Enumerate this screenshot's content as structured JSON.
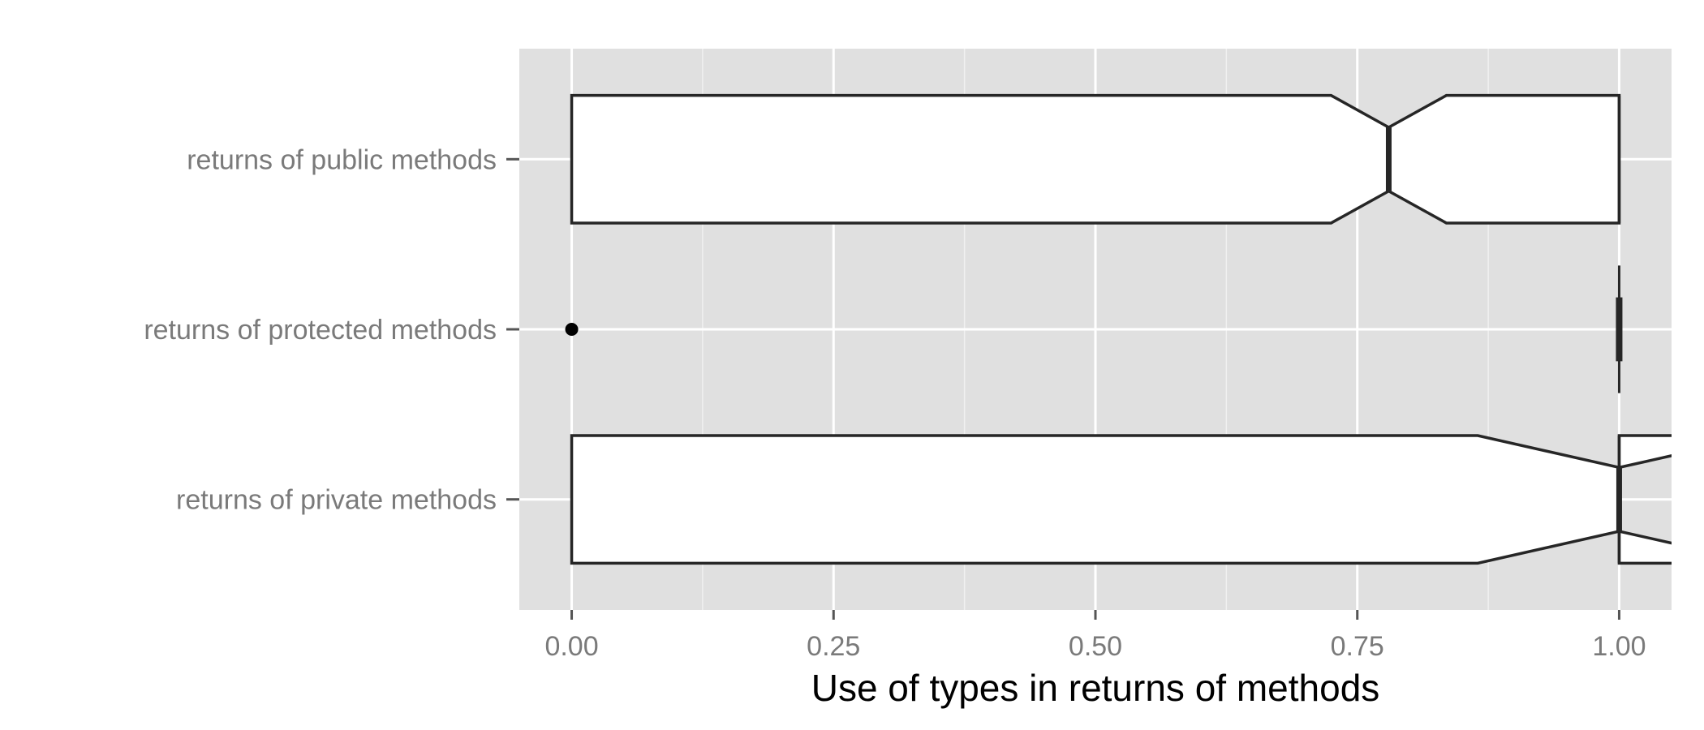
{
  "chart_data": {
    "type": "boxplot",
    "orientation": "horizontal",
    "notched": true,
    "title": "",
    "xlabel": "Use of types in returns of methods",
    "ylabel": "",
    "xlim": [
      -0.05,
      1.05
    ],
    "x_ticks": [
      {
        "value": 0,
        "label": "0.00"
      },
      {
        "value": 0.25,
        "label": "0.25"
      },
      {
        "value": 0.5,
        "label": "0.50"
      },
      {
        "value": 0.75,
        "label": "0.75"
      },
      {
        "value": 1,
        "label": "1.00"
      }
    ],
    "grid": true,
    "legend": "none",
    "colors": {
      "panel": "#e0e0e0",
      "grid_major": "#ffffff",
      "grid_minor": "#f0f0f0",
      "box_fill": "#ffffff",
      "box_stroke": "#262626",
      "tick_label": "#7a7a7a"
    },
    "categories": [
      "returns of public methods",
      "returns of protected methods",
      "returns of private methods"
    ],
    "boxes": [
      {
        "category": "returns of public methods",
        "lower_whisker": 0,
        "q1": 0,
        "median": 0.78,
        "q3": 1,
        "upper_whisker": 1,
        "notch_low": 0.725,
        "notch_high": 0.835,
        "outliers": []
      },
      {
        "category": "returns of protected methods",
        "lower_whisker": 1,
        "q1": 1,
        "median": 1,
        "q3": 1,
        "upper_whisker": 1,
        "notch_low": 1,
        "notch_high": 1,
        "outliers": [
          0
        ]
      },
      {
        "category": "returns of private methods",
        "lower_whisker": 0,
        "q1": 0,
        "median": 1,
        "q3": 1,
        "upper_whisker": 1,
        "notch_low": 0.865,
        "notch_high": 1.135,
        "outliers": []
      }
    ]
  }
}
